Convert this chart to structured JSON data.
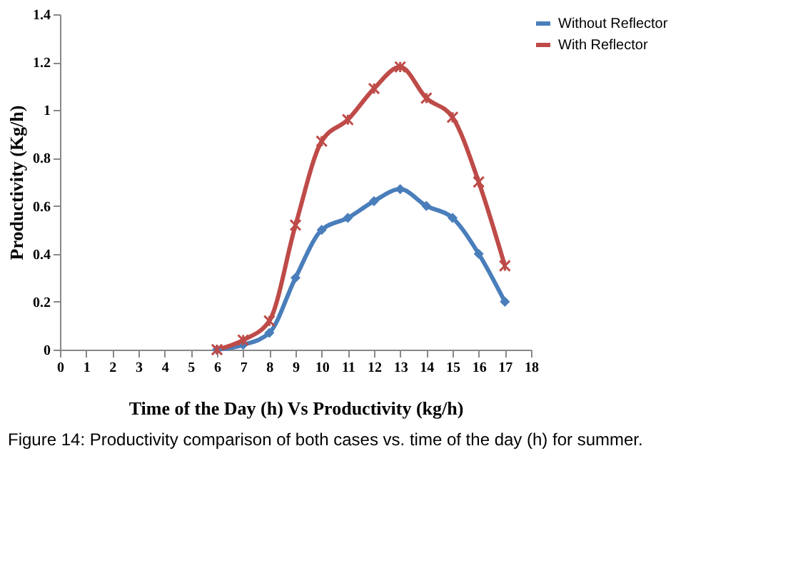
{
  "chart_data": {
    "type": "line",
    "xlabel": "Time of the Day (h)  Vs Productivity  (kg/h)",
    "ylabel": "Productivity  (Kg/h)",
    "x": [
      6,
      7,
      8,
      9,
      10,
      11,
      12,
      13,
      14,
      15,
      16,
      17
    ],
    "series": [
      {
        "name": "Without Reflector",
        "color": "#4a7ebb",
        "marker": "diamond",
        "values": [
          0,
          0.02,
          0.07,
          0.3,
          0.5,
          0.55,
          0.62,
          0.67,
          0.6,
          0.55,
          0.4,
          0.2
        ]
      },
      {
        "name": "With Reflector",
        "color": "#be4b48",
        "marker": "cross",
        "values": [
          0,
          0.04,
          0.12,
          0.52,
          0.87,
          0.96,
          1.09,
          1.18,
          1.05,
          0.97,
          0.7,
          0.35
        ]
      }
    ],
    "xlim": [
      0,
      18
    ],
    "xticks": [
      0,
      1,
      2,
      3,
      4,
      5,
      6,
      7,
      8,
      9,
      10,
      11,
      12,
      13,
      14,
      15,
      16,
      17,
      18
    ],
    "ylim": [
      0,
      1.4
    ],
    "yticks": [
      0,
      0.2,
      0.4,
      0.6,
      0.8,
      1,
      1.2,
      1.4
    ],
    "grid": false,
    "legend": "right",
    "line_style": "solid",
    "annotations": [
      "Figure 14: Productivity comparison of both cases vs. time of the day (h) for summer."
    ]
  }
}
